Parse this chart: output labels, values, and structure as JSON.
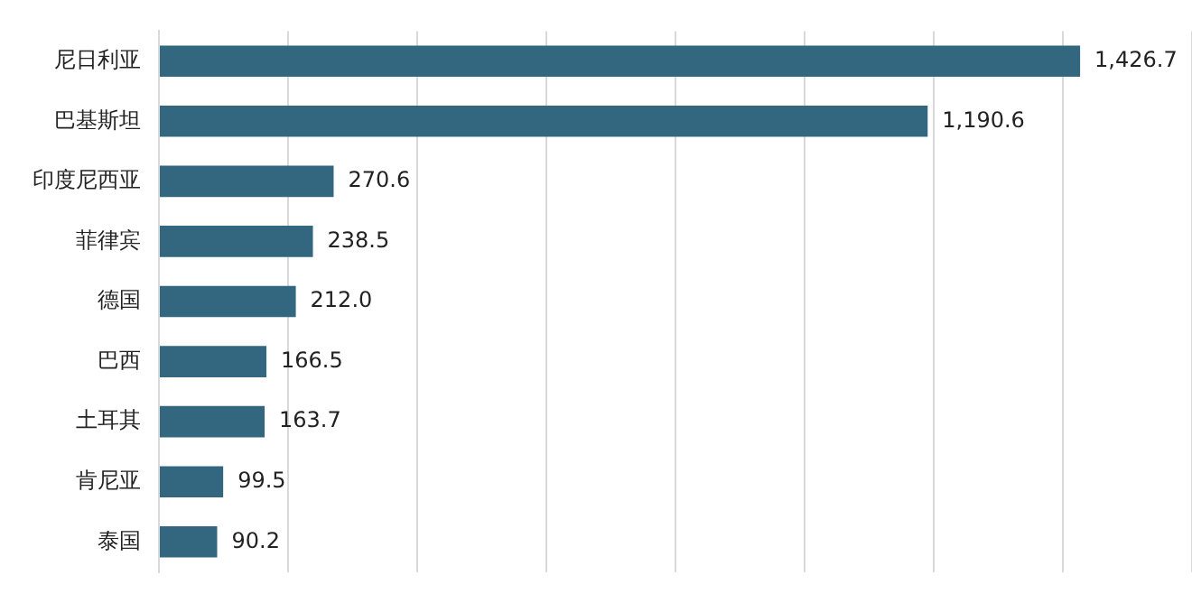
{
  "chart_data": {
    "type": "bar",
    "orientation": "horizontal",
    "categories": [
      "尼日利亚",
      "巴基斯坦",
      "印度尼西亚",
      "菲律宾",
      "德国",
      "巴西",
      "土耳其",
      "肯尼亚",
      "泰国"
    ],
    "values": [
      1426.7,
      1190.6,
      270.6,
      238.5,
      212.0,
      166.5,
      163.7,
      99.5,
      90.2
    ],
    "value_labels": [
      "1,426.7",
      "1,190.6",
      "270.6",
      "238.5",
      "212.0",
      "166.5",
      "163.7",
      "99.5",
      "90.2"
    ],
    "color": "#33667f",
    "xlim": [
      0,
      1600
    ],
    "xticks": [
      {
        "value": 0,
        "label": null
      },
      {
        "value": 200,
        "label": null
      },
      {
        "value": 400,
        "label": null
      },
      {
        "value": 600,
        "label": null
      },
      {
        "value": 800,
        "label": null
      },
      {
        "value": 1000,
        "label": null
      },
      {
        "value": 1200,
        "label": null
      },
      {
        "value": 1400,
        "label": null
      },
      {
        "value": 1600,
        "label": null
      }
    ],
    "grid": "x",
    "tick_labels": "y",
    "legend": false
  }
}
